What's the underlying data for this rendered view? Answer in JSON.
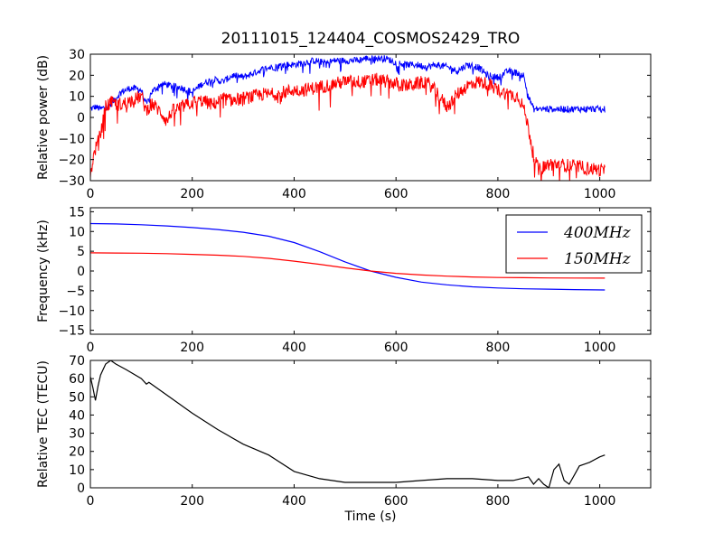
{
  "title": "20111015_124404_COSMOS2429_TRO",
  "colors": {
    "blue": "#0000ff",
    "red": "#ff0000",
    "black": "#000000"
  },
  "chart_data": [
    {
      "type": "line",
      "ylabel": "Relative power (dB)",
      "xlabel": "",
      "xlim": [
        0,
        1100
      ],
      "ylim": [
        -30,
        30
      ],
      "xticks": [
        "0",
        "200",
        "400",
        "600",
        "800",
        "1000"
      ],
      "yticks": [
        "−30",
        "−20",
        "−10",
        "0",
        "10",
        "20",
        "30"
      ],
      "legend": "none",
      "series": [
        {
          "color": "#0000ff",
          "noise": 1.6,
          "x": [
            0,
            10,
            20,
            40,
            60,
            80,
            100,
            110,
            120,
            140,
            160,
            180,
            200,
            220,
            240,
            260,
            280,
            300,
            320,
            340,
            360,
            380,
            400,
            420,
            440,
            460,
            480,
            500,
            520,
            540,
            560,
            580,
            600,
            620,
            640,
            660,
            680,
            700,
            720,
            740,
            760,
            780,
            800,
            820,
            840,
            850,
            860,
            870,
            880,
            900,
            950,
            1000,
            1010
          ],
          "y": [
            4,
            5,
            4,
            6,
            12,
            14,
            13,
            6,
            12,
            16,
            15,
            14,
            12,
            16,
            18,
            17,
            20,
            19,
            21,
            23,
            24,
            25,
            25,
            26,
            27,
            26,
            27,
            27,
            27,
            28,
            28,
            28,
            26,
            25,
            25,
            24,
            25,
            24,
            22,
            25,
            24,
            20,
            19,
            22,
            21,
            20,
            10,
            4,
            4,
            4,
            4,
            4,
            4
          ]
        },
        {
          "color": "#ff0000",
          "noise": 3.2,
          "x": [
            0,
            5,
            10,
            20,
            30,
            40,
            60,
            80,
            100,
            110,
            120,
            140,
            150,
            160,
            180,
            200,
            220,
            240,
            260,
            280,
            300,
            320,
            340,
            360,
            380,
            400,
            420,
            440,
            460,
            480,
            500,
            520,
            540,
            560,
            580,
            600,
            620,
            640,
            660,
            680,
            700,
            720,
            740,
            760,
            780,
            800,
            820,
            840,
            850,
            860,
            870,
            880,
            900,
            950,
            1000,
            1010
          ],
          "y": [
            -28,
            -20,
            -15,
            -8,
            5,
            7,
            6,
            8,
            10,
            3,
            7,
            2,
            -2,
            3,
            5,
            7,
            8,
            6,
            9,
            8,
            9,
            10,
            11,
            11,
            12,
            13,
            13,
            14,
            15,
            16,
            17,
            17,
            17,
            18,
            17,
            16,
            15,
            16,
            17,
            12,
            5,
            11,
            15,
            17,
            16,
            13,
            11,
            10,
            5,
            -5,
            -18,
            -25,
            -22,
            -23,
            -25,
            -25
          ]
        }
      ]
    },
    {
      "type": "line",
      "ylabel": "Frequency (kHz)",
      "xlabel": "",
      "xlim": [
        0,
        1100
      ],
      "ylim": [
        -16,
        16
      ],
      "xticks": [
        "0",
        "200",
        "400",
        "600",
        "800",
        "1000"
      ],
      "yticks": [
        "−15",
        "−10",
        "−5",
        "0",
        "5",
        "10",
        "15"
      ],
      "legend": "top-right",
      "series": [
        {
          "name": "400MHz",
          "color": "#0000ff",
          "x": [
            0,
            50,
            100,
            150,
            200,
            250,
            300,
            350,
            400,
            450,
            500,
            550,
            600,
            650,
            700,
            750,
            800,
            850,
            900,
            950,
            1010
          ],
          "y": [
            12,
            11.9,
            11.7,
            11.4,
            11,
            10.5,
            9.8,
            8.8,
            7.2,
            4.9,
            2.3,
            0,
            -1.6,
            -2.8,
            -3.5,
            -4,
            -4.3,
            -4.5,
            -4.6,
            -4.7,
            -4.8
          ]
        },
        {
          "name": "150MHz",
          "color": "#ff0000",
          "x": [
            0,
            50,
            100,
            150,
            200,
            250,
            300,
            350,
            400,
            450,
            500,
            550,
            600,
            650,
            700,
            750,
            800,
            850,
            900,
            950,
            1010
          ],
          "y": [
            4.6,
            4.55,
            4.5,
            4.4,
            4.2,
            4,
            3.7,
            3.2,
            2.5,
            1.7,
            0.8,
            0,
            -0.6,
            -1,
            -1.3,
            -1.5,
            -1.65,
            -1.7,
            -1.75,
            -1.78,
            -1.8
          ]
        }
      ]
    },
    {
      "type": "line",
      "ylabel": "Relative TEC (TECU)",
      "xlabel": "Time (s)",
      "xlim": [
        0,
        1100
      ],
      "ylim": [
        0,
        70
      ],
      "xticks": [
        "0",
        "200",
        "400",
        "600",
        "800",
        "1000"
      ],
      "yticks": [
        "0",
        "10",
        "20",
        "30",
        "40",
        "50",
        "60",
        "70"
      ],
      "legend": "none",
      "series": [
        {
          "color": "#000000",
          "x": [
            0,
            5,
            10,
            15,
            20,
            30,
            40,
            50,
            70,
            100,
            110,
            115,
            120,
            150,
            200,
            250,
            300,
            350,
            400,
            450,
            500,
            550,
            600,
            650,
            700,
            750,
            800,
            830,
            860,
            870,
            880,
            890,
            900,
            910,
            920,
            930,
            940,
            950,
            960,
            970,
            980,
            1000,
            1010
          ],
          "y": [
            61,
            55,
            48,
            56,
            62,
            68,
            70,
            68,
            65,
            60,
            57,
            58,
            57,
            51,
            41,
            32,
            24,
            18,
            9,
            5,
            3,
            3,
            3,
            4,
            5,
            5,
            4,
            4,
            6,
            2,
            5,
            2,
            0,
            10,
            13,
            4,
            2,
            7,
            12,
            13,
            14,
            17,
            18
          ]
        }
      ]
    }
  ]
}
